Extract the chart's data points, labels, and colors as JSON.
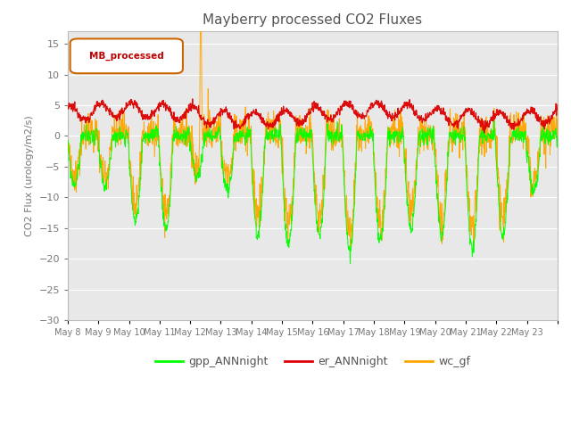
{
  "title": "Mayberry processed CO2 Fluxes",
  "ylabel": "CO2 Flux (urology/m2/s)",
  "ylim": [
    -30,
    17
  ],
  "yticks": [
    15,
    10,
    5,
    0,
    -5,
    -10,
    -15,
    -20,
    -25,
    -30
  ],
  "x_labels": [
    "May 8",
    "May 9",
    "May 10",
    "May 11",
    "May 12",
    "May 13",
    "May 14",
    "May 15",
    "May 16",
    "May 17",
    "May 18",
    "May 19",
    "May 20",
    "May 21",
    "May 22",
    "May 23"
  ],
  "legend_label": "MB_processed",
  "line_gpp": "#00ff00",
  "line_er": "#dd0000",
  "line_wc": "#ffa500",
  "plot_bg_color": "#e8e8e8",
  "grid_color": "#ffffff",
  "tick_color": "#777777",
  "title_color": "#555555",
  "n_days": 16,
  "pts_per_day": 96
}
